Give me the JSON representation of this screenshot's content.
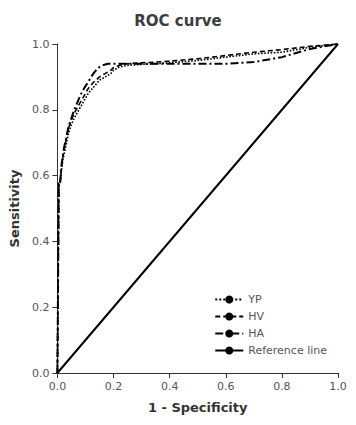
{
  "chart_data": {
    "type": "line",
    "title": "ROC curve",
    "xlabel": "1 - Specificity",
    "ylabel": "Sensitivity",
    "xlim": [
      0.0,
      1.0
    ],
    "ylim": [
      0.0,
      1.0
    ],
    "xticks": [
      {
        "value": 0.0,
        "label": "0.0"
      },
      0.2,
      0.4,
      0.6,
      0.8,
      {
        "value": 1.0,
        "label": "1.0"
      }
    ],
    "yticks": [
      {
        "value": 0.0,
        "label": "0.0"
      },
      0.2,
      0.4,
      0.6,
      0.8,
      {
        "value": 1.0,
        "label": "1.0"
      }
    ],
    "grid": false,
    "legend": "lower right",
    "series": [
      {
        "name": "YP",
        "color": "#000000",
        "line_style": "dotted",
        "x": [
          0.0,
          0.005,
          0.01,
          0.015,
          0.02,
          0.025,
          0.03,
          0.035,
          0.04,
          0.05,
          0.06,
          0.07,
          0.08,
          0.09,
          0.1,
          0.11,
          0.12,
          0.13,
          0.14,
          0.15,
          0.16,
          0.17,
          0.18,
          0.19,
          0.2,
          0.22,
          0.25,
          0.3,
          0.35,
          0.4,
          0.5,
          0.6,
          0.7,
          0.8,
          0.9,
          1.0
        ],
        "values": [
          0.0,
          0.58,
          0.58,
          0.62,
          0.65,
          0.67,
          0.69,
          0.71,
          0.73,
          0.755,
          0.775,
          0.79,
          0.805,
          0.82,
          0.835,
          0.85,
          0.86,
          0.87,
          0.88,
          0.89,
          0.895,
          0.9,
          0.905,
          0.91,
          0.92,
          0.93,
          0.935,
          0.938,
          0.94,
          0.943,
          0.95,
          0.96,
          0.97,
          0.975,
          0.99,
          1.0
        ]
      },
      {
        "name": "HV",
        "color": "#000000",
        "line_style": "dashed",
        "x": [
          0.0,
          0.005,
          0.01,
          0.015,
          0.02,
          0.025,
          0.03,
          0.035,
          0.04,
          0.05,
          0.06,
          0.07,
          0.08,
          0.09,
          0.1,
          0.11,
          0.12,
          0.13,
          0.14,
          0.15,
          0.16,
          0.17,
          0.18,
          0.19,
          0.2,
          0.22,
          0.25,
          0.3,
          0.35,
          0.4,
          0.5,
          0.6,
          0.7,
          0.8,
          0.9,
          1.0
        ],
        "values": [
          0.0,
          0.58,
          0.58,
          0.63,
          0.66,
          0.685,
          0.705,
          0.725,
          0.745,
          0.77,
          0.79,
          0.805,
          0.82,
          0.835,
          0.85,
          0.865,
          0.875,
          0.885,
          0.892,
          0.9,
          0.905,
          0.91,
          0.915,
          0.92,
          0.928,
          0.935,
          0.94,
          0.943,
          0.945,
          0.948,
          0.955,
          0.965,
          0.975,
          0.983,
          0.993,
          1.0
        ]
      },
      {
        "name": "HA",
        "color": "#000000",
        "line_style": "dashdot",
        "x": [
          0.0,
          0.005,
          0.01,
          0.015,
          0.02,
          0.025,
          0.03,
          0.035,
          0.04,
          0.05,
          0.06,
          0.07,
          0.08,
          0.09,
          0.1,
          0.11,
          0.12,
          0.13,
          0.14,
          0.15,
          0.16,
          0.18,
          0.2,
          0.22,
          0.25,
          0.3,
          0.4,
          0.5,
          0.6,
          0.7,
          0.8,
          0.9,
          1.0
        ],
        "values": [
          0.0,
          0.58,
          0.58,
          0.635,
          0.665,
          0.69,
          0.71,
          0.73,
          0.75,
          0.775,
          0.8,
          0.82,
          0.84,
          0.858,
          0.872,
          0.885,
          0.9,
          0.912,
          0.922,
          0.93,
          0.935,
          0.94,
          0.94,
          0.94,
          0.94,
          0.94,
          0.94,
          0.94,
          0.94,
          0.945,
          0.96,
          0.985,
          1.0
        ]
      },
      {
        "name": "Reference line",
        "color": "#000000",
        "line_style": "solid",
        "x": [
          0,
          1
        ],
        "values": [
          0,
          1
        ]
      }
    ]
  }
}
